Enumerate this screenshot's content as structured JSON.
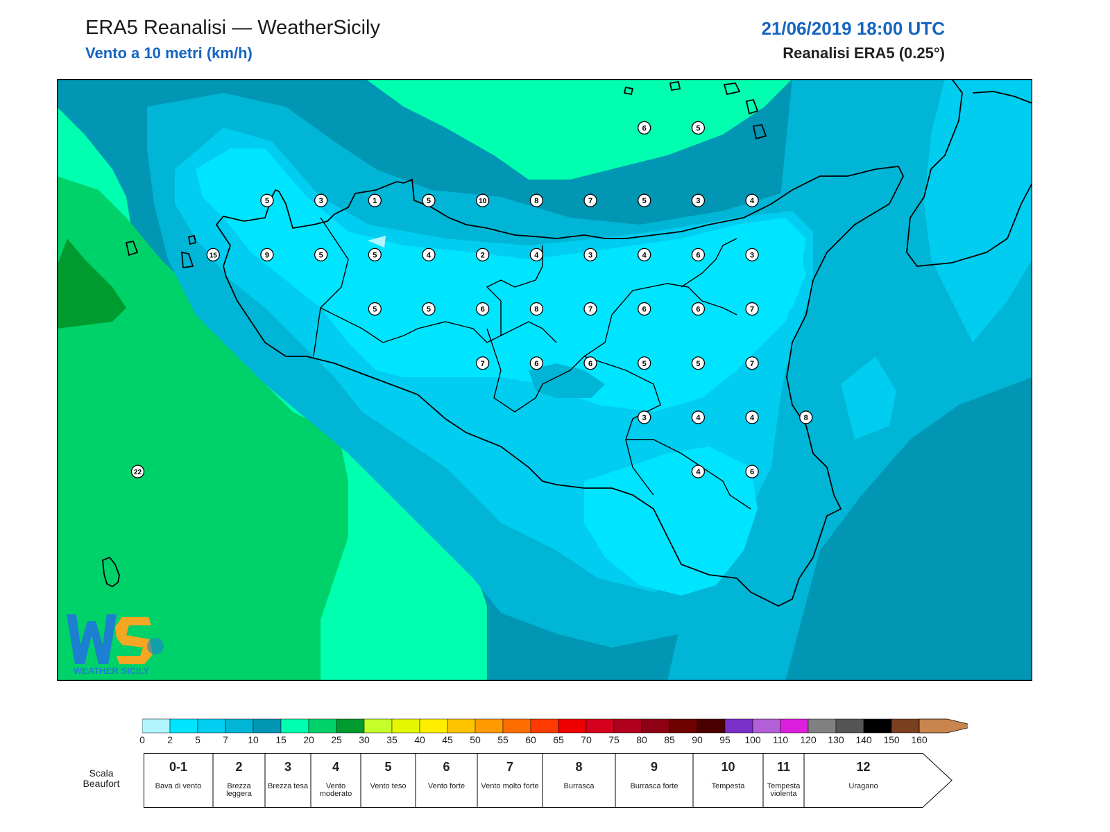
{
  "header": {
    "title": "ERA5 Reanalisi — WeatherSicily",
    "subtitle": "Vento a 10 metri (km/h)",
    "datetime": "21/06/2019 18:00 UTC",
    "model": "Reanalisi ERA5 (0.25°)"
  },
  "colors": {
    "title_blue": "#1565c0",
    "coast": "#000000"
  },
  "colorbar": {
    "ticks": [
      "0",
      "2",
      "5",
      "7",
      "10",
      "15",
      "20",
      "25",
      "30",
      "35",
      "40",
      "45",
      "50",
      "55",
      "60",
      "65",
      "70",
      "75",
      "80",
      "85",
      "90",
      "95",
      "100",
      "110",
      "120",
      "130",
      "140",
      "150",
      "160"
    ],
    "colors": [
      "#b3f5ff",
      "#00e5ff",
      "#00cdef",
      "#00b5d5",
      "#0096b4",
      "#00ffae",
      "#00d26a",
      "#009b2e",
      "#c5ff2a",
      "#e4f700",
      "#ffee00",
      "#ffc300",
      "#ff9a00",
      "#ff6e00",
      "#ff3a00",
      "#ee0000",
      "#d4001e",
      "#b0001e",
      "#8e0014",
      "#6e0000",
      "#4a0000",
      "#7a2fc8",
      "#b35fd6",
      "#dc1fdc",
      "#808080",
      "#555555",
      "#000000",
      "#7b4020",
      "#c8864e"
    ]
  },
  "beaufort": {
    "title": "Scala Beaufort",
    "classes": [
      {
        "num": "0-1",
        "desc": "Bava di vento"
      },
      {
        "num": "2",
        "desc": "Brezza leggera"
      },
      {
        "num": "3",
        "desc": "Brezza tesa"
      },
      {
        "num": "4",
        "desc": "Vento moderato"
      },
      {
        "num": "5",
        "desc": "Vento teso"
      },
      {
        "num": "6",
        "desc": "Vento forte"
      },
      {
        "num": "7",
        "desc": "Vento molto forte"
      },
      {
        "num": "8",
        "desc": "Burrasca"
      },
      {
        "num": "9",
        "desc": "Burrasca forte"
      },
      {
        "num": "10",
        "desc": "Tempesta"
      },
      {
        "num": "11",
        "desc": "Tempesta violenta"
      },
      {
        "num": "12",
        "desc": "Uragano"
      }
    ]
  },
  "stations": [
    {
      "lon": 12.2,
      "lat": 38.03,
      "wind": "5"
    },
    {
      "lon": 12.7,
      "lat": 38.03,
      "wind": "3"
    },
    {
      "lon": 13.2,
      "lat": 38.03,
      "wind": "1"
    },
    {
      "lon": 13.7,
      "lat": 38.03,
      "wind": "5"
    },
    {
      "lon": 14.2,
      "lat": 38.03,
      "wind": "10"
    },
    {
      "lon": 14.7,
      "lat": 38.03,
      "wind": "8"
    },
    {
      "lon": 15.2,
      "lat": 38.03,
      "wind": "7"
    },
    {
      "lon": 15.7,
      "lat": 38.03,
      "wind": "5"
    },
    {
      "lon": 16.2,
      "lat": 38.03,
      "wind": "3"
    },
    {
      "lon": 16.7,
      "lat": 38.03,
      "wind": "4"
    },
    {
      "lon": 15.7,
      "lat": 38.7,
      "wind": "6"
    },
    {
      "lon": 16.2,
      "lat": 38.7,
      "wind": "5"
    },
    {
      "lon": 11.7,
      "lat": 37.53,
      "wind": "15"
    },
    {
      "lon": 12.2,
      "lat": 37.53,
      "wind": "9"
    },
    {
      "lon": 12.7,
      "lat": 37.53,
      "wind": "5"
    },
    {
      "lon": 13.2,
      "lat": 37.53,
      "wind": "5"
    },
    {
      "lon": 13.7,
      "lat": 37.53,
      "wind": "4"
    },
    {
      "lon": 14.2,
      "lat": 37.53,
      "wind": "2"
    },
    {
      "lon": 14.7,
      "lat": 37.53,
      "wind": "4"
    },
    {
      "lon": 15.2,
      "lat": 37.53,
      "wind": "3"
    },
    {
      "lon": 15.7,
      "lat": 37.53,
      "wind": "4"
    },
    {
      "lon": 16.2,
      "lat": 37.53,
      "wind": "6"
    },
    {
      "lon": 16.7,
      "lat": 37.53,
      "wind": "3"
    },
    {
      "lon": 13.2,
      "lat": 37.03,
      "wind": "5"
    },
    {
      "lon": 13.7,
      "lat": 37.03,
      "wind": "5"
    },
    {
      "lon": 14.2,
      "lat": 37.03,
      "wind": "6"
    },
    {
      "lon": 14.7,
      "lat": 37.03,
      "wind": "8"
    },
    {
      "lon": 15.2,
      "lat": 37.03,
      "wind": "7"
    },
    {
      "lon": 15.7,
      "lat": 37.03,
      "wind": "6"
    },
    {
      "lon": 16.2,
      "lat": 37.03,
      "wind": "6"
    },
    {
      "lon": 16.7,
      "lat": 37.03,
      "wind": "7"
    },
    {
      "lon": 14.2,
      "lat": 36.53,
      "wind": "7"
    },
    {
      "lon": 14.7,
      "lat": 36.53,
      "wind": "6"
    },
    {
      "lon": 15.2,
      "lat": 36.53,
      "wind": "6"
    },
    {
      "lon": 15.7,
      "lat": 36.53,
      "wind": "5"
    },
    {
      "lon": 16.2,
      "lat": 36.53,
      "wind": "5"
    },
    {
      "lon": 16.7,
      "lat": 36.53,
      "wind": "7"
    },
    {
      "lon": 15.7,
      "lat": 36.03,
      "wind": "3"
    },
    {
      "lon": 16.2,
      "lat": 36.03,
      "wind": "4"
    },
    {
      "lon": 16.7,
      "lat": 36.03,
      "wind": "4"
    },
    {
      "lon": 17.2,
      "lat": 36.03,
      "wind": "8"
    },
    {
      "lon": 16.2,
      "lat": 35.53,
      "wind": "4"
    },
    {
      "lon": 16.7,
      "lat": 35.53,
      "wind": "6"
    },
    {
      "lon": 11.0,
      "lat": 35.53,
      "wind": "22"
    }
  ],
  "logo": {
    "text": "WEATHER SICILY"
  }
}
